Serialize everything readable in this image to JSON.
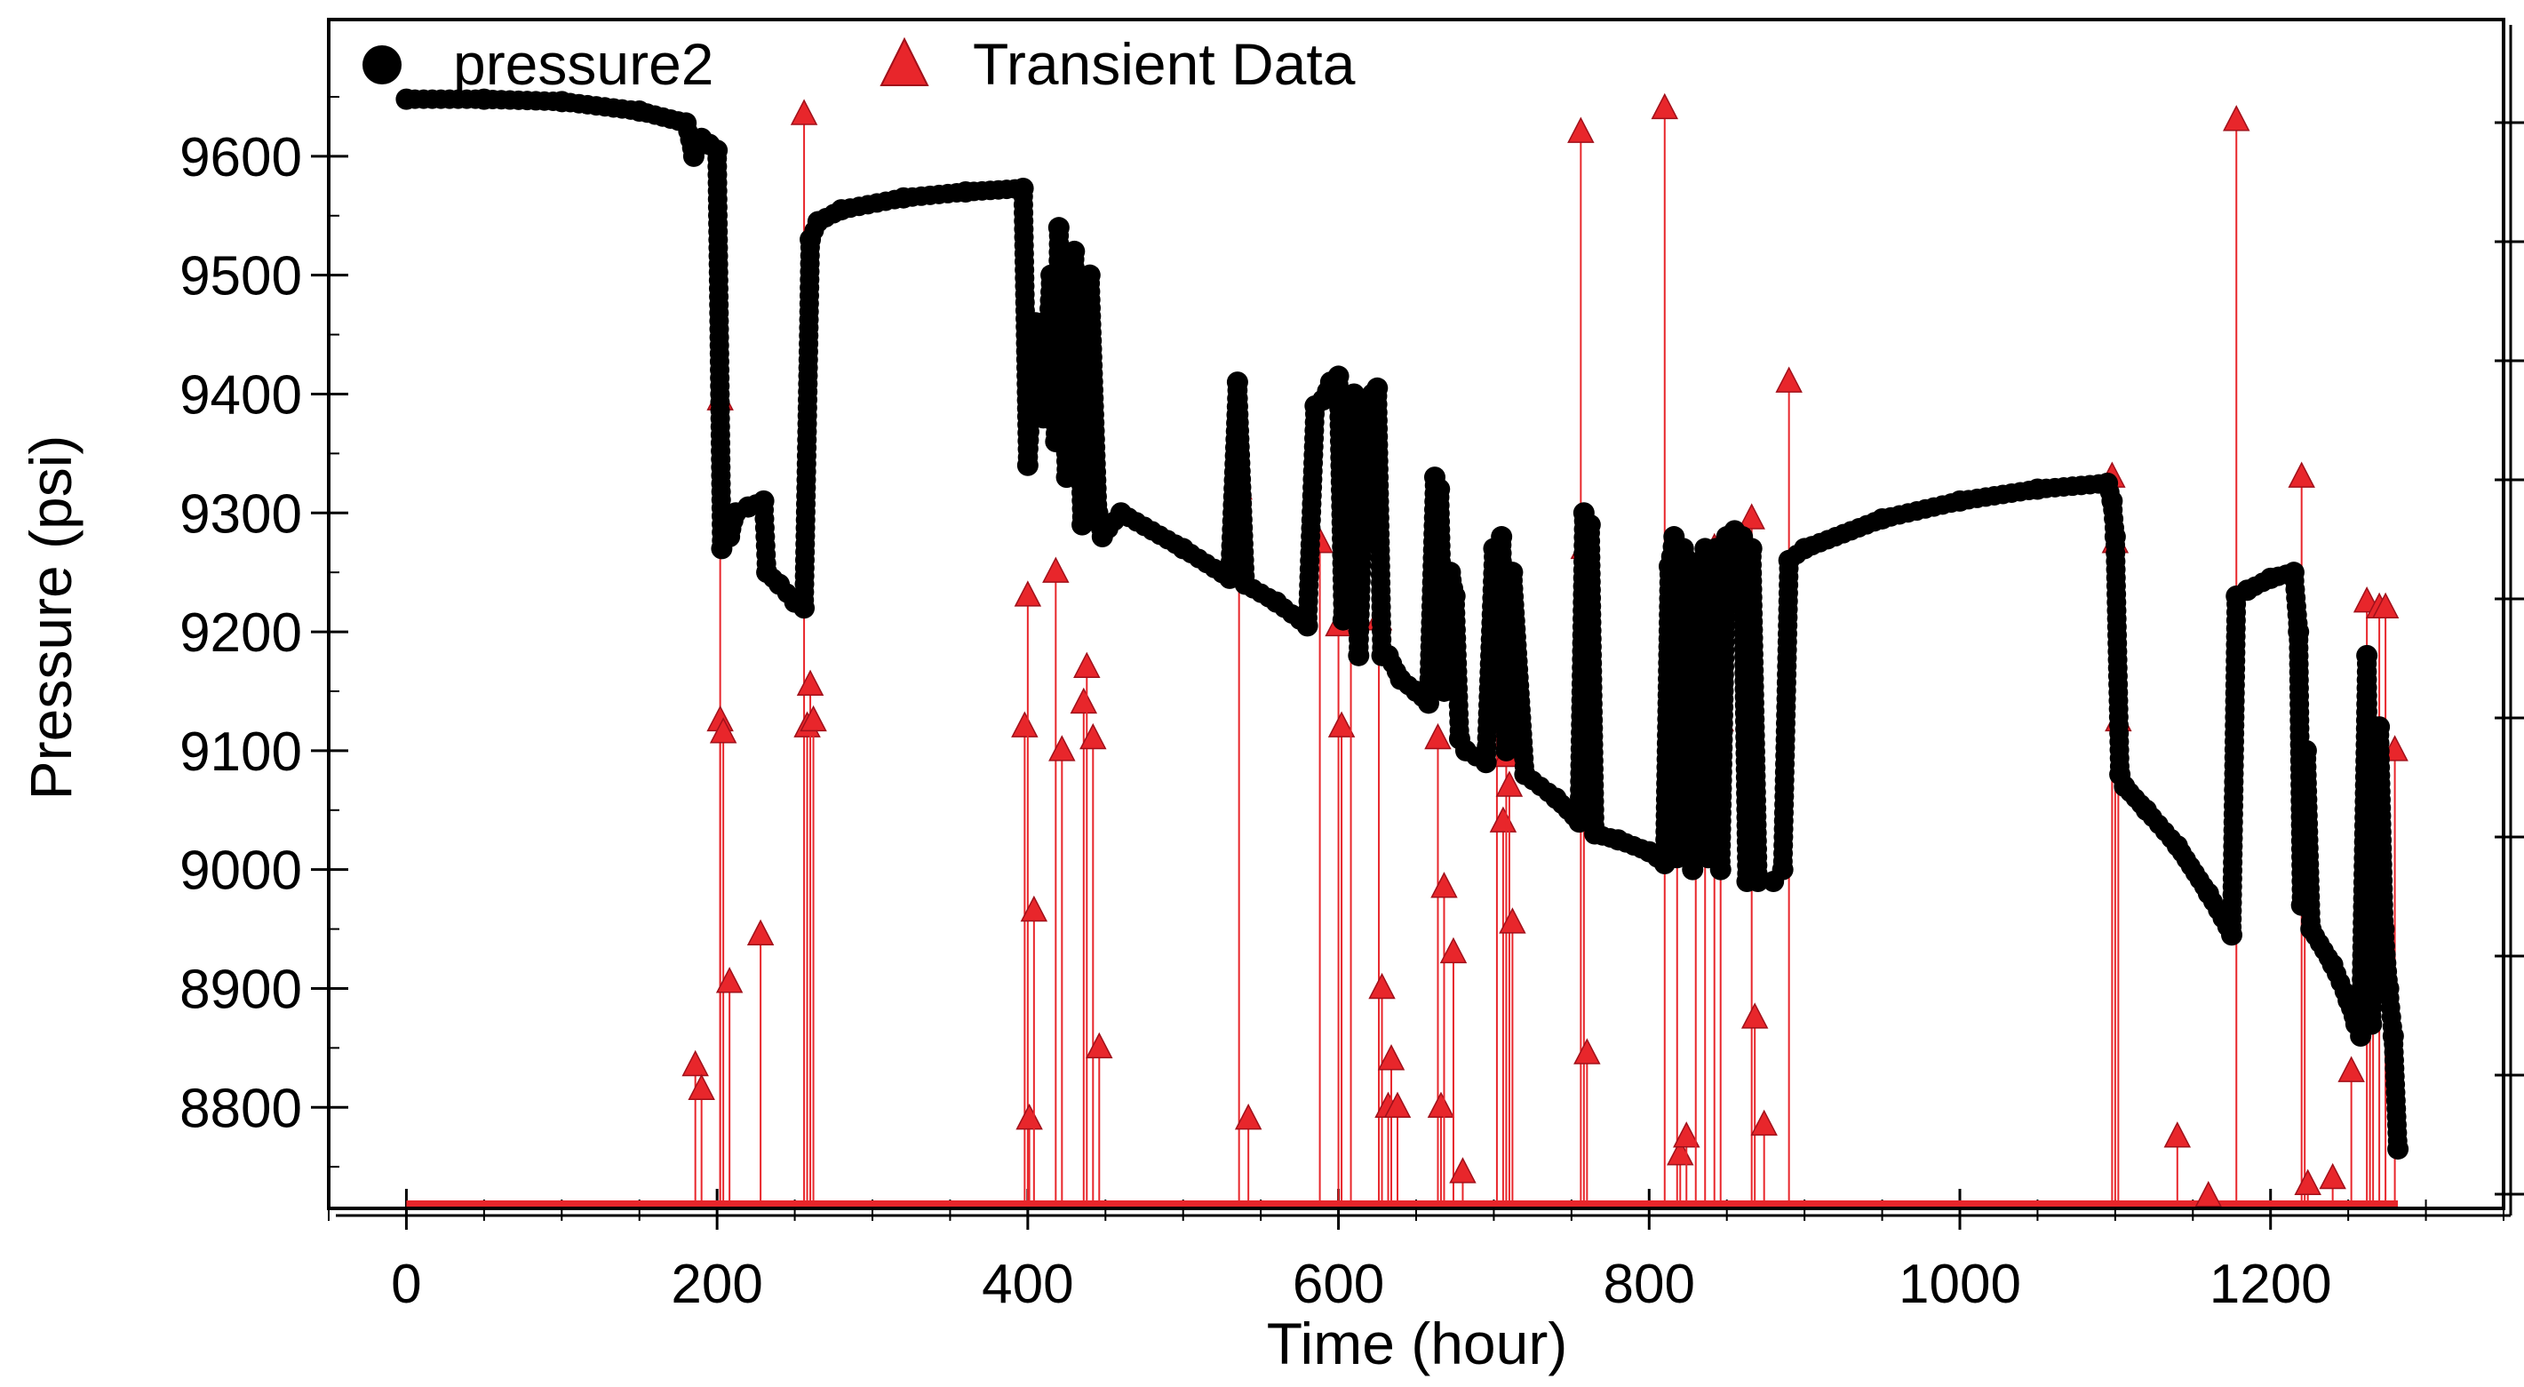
{
  "colors": {
    "pressure": "#000000",
    "transient": "#e8262b",
    "axis": "#000000",
    "background": "#ffffff"
  },
  "icons": {
    "pressure_marker": "filled-circle",
    "transient_marker": "filled-triangle"
  },
  "chart_data": {
    "type": "scatter",
    "title": "",
    "xlabel": "Time (hour)",
    "ylabel": "Pressure (psi)",
    "xlim": [
      -50,
      1350
    ],
    "ylim": [
      8715,
      9715
    ],
    "x_ticks": [
      0,
      200,
      400,
      600,
      800,
      1000,
      1200
    ],
    "y_ticks": [
      8800,
      8900,
      9000,
      9100,
      9200,
      9300,
      9400,
      9500,
      9600
    ],
    "transient_baseline": 8718,
    "legend": {
      "placement": "top-left",
      "entries": [
        "pressure2",
        "Transient Data"
      ]
    },
    "series": [
      {
        "name": "pressure2",
        "marker": "circle",
        "points": [
          [
            0,
            9648
          ],
          [
            50,
            9648
          ],
          [
            100,
            9646
          ],
          [
            150,
            9638
          ],
          [
            180,
            9628
          ],
          [
            185,
            9600
          ],
          [
            190,
            9615
          ],
          [
            195,
            9610
          ],
          [
            200,
            9605
          ],
          [
            203,
            9270
          ],
          [
            208,
            9280
          ],
          [
            212,
            9300
          ],
          [
            220,
            9305
          ],
          [
            230,
            9310
          ],
          [
            232,
            9250
          ],
          [
            240,
            9240
          ],
          [
            250,
            9225
          ],
          [
            256,
            9220
          ],
          [
            260,
            9530
          ],
          [
            265,
            9545
          ],
          [
            280,
            9555
          ],
          [
            320,
            9565
          ],
          [
            360,
            9570
          ],
          [
            397,
            9573
          ],
          [
            400,
            9340
          ],
          [
            405,
            9460
          ],
          [
            410,
            9380
          ],
          [
            415,
            9500
          ],
          [
            418,
            9360
          ],
          [
            420,
            9540
          ],
          [
            425,
            9330
          ],
          [
            430,
            9520
          ],
          [
            435,
            9290
          ],
          [
            440,
            9500
          ],
          [
            445,
            9300
          ],
          [
            448,
            9280
          ],
          [
            460,
            9300
          ],
          [
            500,
            9270
          ],
          [
            530,
            9245
          ],
          [
            535,
            9410
          ],
          [
            540,
            9240
          ],
          [
            560,
            9225
          ],
          [
            580,
            9205
          ],
          [
            585,
            9390
          ],
          [
            590,
            9395
          ],
          [
            595,
            9410
          ],
          [
            600,
            9415
          ],
          [
            603,
            9210
          ],
          [
            606,
            9380
          ],
          [
            610,
            9400
          ],
          [
            613,
            9180
          ],
          [
            618,
            9395
          ],
          [
            622,
            9400
          ],
          [
            625,
            9405
          ],
          [
            628,
            9180
          ],
          [
            632,
            9180
          ],
          [
            640,
            9160
          ],
          [
            650,
            9150
          ],
          [
            658,
            9140
          ],
          [
            662,
            9330
          ],
          [
            665,
            9320
          ],
          [
            668,
            9150
          ],
          [
            672,
            9250
          ],
          [
            675,
            9230
          ],
          [
            678,
            9110
          ],
          [
            682,
            9100
          ],
          [
            695,
            9090
          ],
          [
            700,
            9270
          ],
          [
            705,
            9280
          ],
          [
            708,
            9100
          ],
          [
            712,
            9250
          ],
          [
            720,
            9080
          ],
          [
            740,
            9060
          ],
          [
            755,
            9040
          ],
          [
            758,
            9300
          ],
          [
            762,
            9290
          ],
          [
            765,
            9030
          ],
          [
            780,
            9025
          ],
          [
            800,
            9015
          ],
          [
            810,
            9005
          ],
          [
            813,
            9255
          ],
          [
            816,
            9280
          ],
          [
            818,
            9010
          ],
          [
            822,
            9270
          ],
          [
            826,
            9250
          ],
          [
            828,
            9000
          ],
          [
            833,
            9250
          ],
          [
            836,
            9270
          ],
          [
            838,
            9010
          ],
          [
            843,
            9270
          ],
          [
            846,
            9000
          ],
          [
            850,
            9280
          ],
          [
            855,
            9285
          ],
          [
            860,
            9280
          ],
          [
            863,
            8990
          ],
          [
            866,
            9270
          ],
          [
            870,
            8990
          ],
          [
            880,
            8990
          ],
          [
            886,
            9000
          ],
          [
            890,
            9260
          ],
          [
            900,
            9270
          ],
          [
            950,
            9295
          ],
          [
            1000,
            9310
          ],
          [
            1050,
            9320
          ],
          [
            1095,
            9325
          ],
          [
            1098,
            9310
          ],
          [
            1100,
            9280
          ],
          [
            1103,
            9080
          ],
          [
            1106,
            9070
          ],
          [
            1120,
            9050
          ],
          [
            1140,
            9020
          ],
          [
            1160,
            8980
          ],
          [
            1175,
            8945
          ],
          [
            1178,
            9230
          ],
          [
            1185,
            9235
          ],
          [
            1200,
            9245
          ],
          [
            1215,
            9250
          ],
          [
            1218,
            9200
          ],
          [
            1220,
            8970
          ],
          [
            1223,
            9100
          ],
          [
            1226,
            8950
          ],
          [
            1240,
            8920
          ],
          [
            1250,
            8890
          ],
          [
            1255,
            8870
          ],
          [
            1258,
            8860
          ],
          [
            1262,
            9180
          ],
          [
            1265,
            8870
          ],
          [
            1270,
            9120
          ],
          [
            1273,
            8950
          ],
          [
            1276,
            8900
          ],
          [
            1279,
            8860
          ],
          [
            1282,
            8765
          ]
        ]
      },
      {
        "name": "Transient Data",
        "marker": "triangle",
        "points": [
          [
            186,
            8835
          ],
          [
            190,
            8815
          ],
          [
            202,
            9395
          ],
          [
            202,
            9125
          ],
          [
            204,
            9115
          ],
          [
            208,
            8905
          ],
          [
            228,
            8945
          ],
          [
            256,
            9635
          ],
          [
            258,
            9120
          ],
          [
            260,
            9155
          ],
          [
            262,
            9125
          ],
          [
            398,
            9120
          ],
          [
            400,
            9230
          ],
          [
            401,
            8790
          ],
          [
            404,
            8965
          ],
          [
            418,
            9250
          ],
          [
            422,
            9100
          ],
          [
            436,
            9140
          ],
          [
            438,
            9170
          ],
          [
            442,
            9110
          ],
          [
            446,
            8850
          ],
          [
            536,
            9320
          ],
          [
            542,
            8790
          ],
          [
            588,
            9275
          ],
          [
            600,
            9205
          ],
          [
            602,
            9120
          ],
          [
            608,
            9380
          ],
          [
            626,
            9210
          ],
          [
            628,
            8900
          ],
          [
            632,
            8800
          ],
          [
            634,
            8840
          ],
          [
            638,
            8800
          ],
          [
            664,
            9110
          ],
          [
            666,
            8800
          ],
          [
            668,
            8985
          ],
          [
            674,
            8930
          ],
          [
            680,
            8745
          ],
          [
            702,
            9125
          ],
          [
            706,
            9040
          ],
          [
            708,
            9095
          ],
          [
            710,
            9070
          ],
          [
            712,
            8955
          ],
          [
            756,
            9620
          ],
          [
            758,
            9270
          ],
          [
            760,
            8845
          ],
          [
            810,
            9640
          ],
          [
            818,
            9255
          ],
          [
            820,
            8760
          ],
          [
            824,
            8775
          ],
          [
            830,
            9080
          ],
          [
            836,
            9255
          ],
          [
            842,
            9270
          ],
          [
            846,
            9125
          ],
          [
            866,
            9295
          ],
          [
            868,
            8875
          ],
          [
            874,
            8785
          ],
          [
            890,
            9410
          ],
          [
            1098,
            9330
          ],
          [
            1100,
            9275
          ],
          [
            1102,
            9125
          ],
          [
            1140,
            8775
          ],
          [
            1160,
            8725
          ],
          [
            1178,
            9630
          ],
          [
            1220,
            9330
          ],
          [
            1222,
            9025
          ],
          [
            1224,
            8735
          ],
          [
            1240,
            8740
          ],
          [
            1252,
            8830
          ],
          [
            1262,
            9225
          ],
          [
            1264,
            9065
          ],
          [
            1266,
            9115
          ],
          [
            1270,
            9220
          ],
          [
            1274,
            9220
          ],
          [
            1280,
            9100
          ]
        ]
      }
    ]
  }
}
